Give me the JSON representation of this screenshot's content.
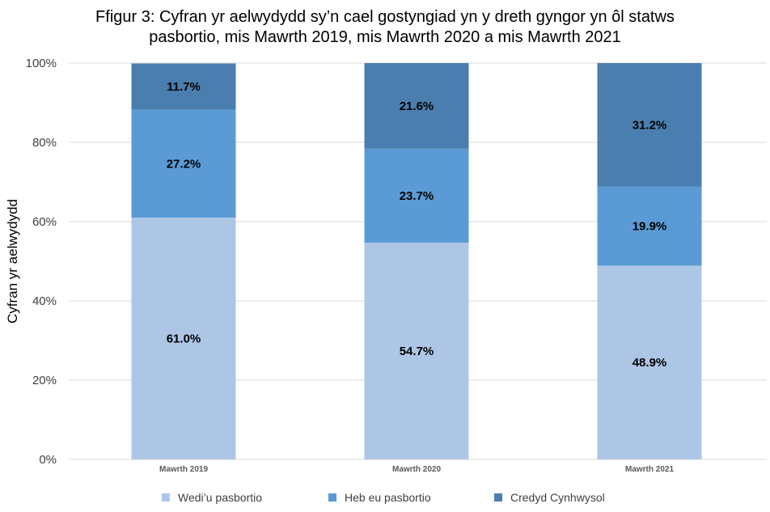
{
  "chart_data": {
    "type": "bar",
    "stacked": true,
    "title_lines": [
      "Ffigur 3: Cyfran yr aelwydydd sy’n cael gostyngiad yn y dreth gyngor yn ôl statws",
      "pasbortio, mis Mawrth 2019, mis Mawrth 2020 a mis Mawrth 2021"
    ],
    "xlabel": "",
    "ylabel": "Cyfran yr aelwydydd",
    "ylim": [
      0,
      100
    ],
    "yticks": [
      "0%",
      "20%",
      "40%",
      "60%",
      "80%",
      "100%"
    ],
    "grid": true,
    "legend_position": "bottom",
    "categories": [
      "Mawrth 2019",
      "Mawrth 2020",
      "Mawrth 2021"
    ],
    "series": [
      {
        "name": "Wedi’u pasbortio",
        "values": [
          61.0,
          54.7,
          48.9
        ],
        "labels": [
          "61.0%",
          "54.7%",
          "48.9%"
        ],
        "color": "#AEC6E6"
      },
      {
        "name": "Heb eu pasbortio",
        "values": [
          27.2,
          23.7,
          19.9
        ],
        "labels": [
          "27.2%",
          "23.7%",
          "19.9%"
        ],
        "color": "#5A9BD5"
      },
      {
        "name": "Credyd Cynhwysol",
        "values": [
          11.7,
          21.6,
          31.2
        ],
        "labels": [
          "11.7%",
          "21.6%",
          "31.2%"
        ],
        "color": "#4A7EAE"
      }
    ]
  }
}
